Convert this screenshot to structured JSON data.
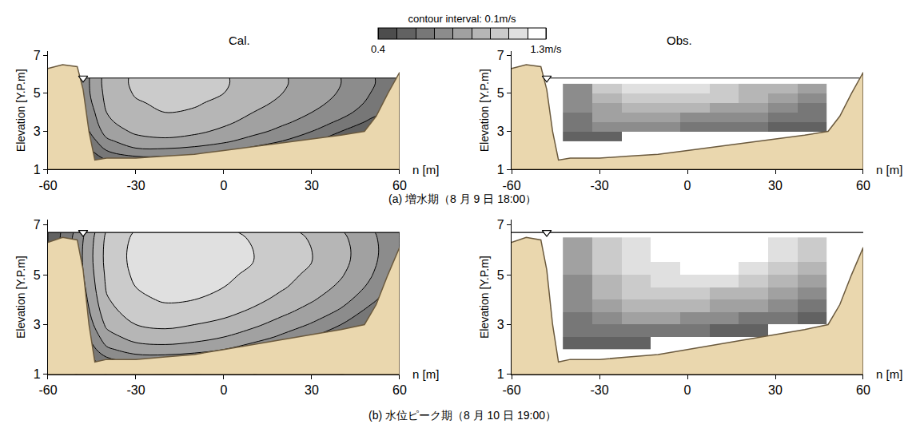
{
  "chart_data": {
    "type": "contour",
    "colorbar": {
      "title": "contour interval: 0.1m/s",
      "range": [
        0.4,
        1.3
      ],
      "interval": 0.1,
      "ticks": [
        0.4,
        {
          "value": 1.3,
          "label": "1.3m/s"
        }
      ],
      "colors": [
        "#4d4d4d",
        "#626262",
        "#777777",
        "#8c8c8c",
        "#a1a1a1",
        "#b6b6b6",
        "#cbcbcb",
        "#e0e0e0",
        "#ffffff"
      ]
    },
    "xlabel": "n [m]",
    "ylabel": "Elevation [Y.P.m]",
    "xlim": [
      -60,
      60
    ],
    "xticks": [
      -60,
      -30,
      0,
      30,
      60
    ],
    "ylim": [
      1,
      7.2
    ],
    "yticks": [
      1,
      3,
      5,
      7
    ],
    "grid": false,
    "bed": {
      "n": [
        -60,
        -55,
        -50,
        -48,
        -46,
        -44,
        -40,
        -30,
        -20,
        -10,
        0,
        10,
        20,
        30,
        40,
        48,
        52,
        56,
        60
      ],
      "elevation": [
        6.3,
        6.5,
        6.4,
        5.2,
        3.0,
        1.5,
        1.6,
        1.6,
        1.7,
        1.8,
        2.0,
        2.2,
        2.4,
        2.6,
        2.8,
        3.0,
        3.8,
        5.0,
        6.1
      ]
    },
    "columns": [
      "Cal.",
      "Obs."
    ],
    "rows": [
      {
        "caption": "(a) 増水期（8 月 9 日 18:00）",
        "water_level": 5.8,
        "panels": [
          {
            "type": "contour",
            "x": [
              -60,
              -50,
              -40,
              -30,
              -20,
              -10,
              0,
              10,
              20,
              30,
              40,
              50,
              60
            ],
            "y": [
              1.0,
              1.5,
              2.0,
              2.5,
              3.0,
              3.5,
              4.0,
              4.5,
              5.0,
              5.5,
              5.8
            ],
            "z": [
              [
                0.4,
                0.4,
                0.5,
                0.55,
                0.55,
                0.55,
                0.5,
                0.5,
                0.45,
                0.4,
                0.4,
                0.4,
                0.4
              ],
              [
                0.4,
                0.45,
                0.6,
                0.65,
                0.65,
                0.65,
                0.6,
                0.55,
                0.5,
                0.45,
                0.4,
                0.4,
                0.4
              ],
              [
                0.4,
                0.5,
                0.7,
                0.78,
                0.78,
                0.76,
                0.72,
                0.66,
                0.6,
                0.52,
                0.45,
                0.4,
                0.4
              ],
              [
                0.45,
                0.55,
                0.78,
                0.86,
                0.88,
                0.86,
                0.82,
                0.76,
                0.7,
                0.62,
                0.52,
                0.45,
                0.4
              ],
              [
                0.5,
                0.6,
                0.84,
                0.92,
                0.94,
                0.92,
                0.88,
                0.83,
                0.77,
                0.7,
                0.6,
                0.5,
                0.45
              ],
              [
                0.5,
                0.62,
                0.88,
                0.96,
                0.98,
                0.96,
                0.92,
                0.87,
                0.82,
                0.76,
                0.68,
                0.58,
                0.5
              ],
              [
                0.5,
                0.65,
                0.9,
                0.98,
                1.0,
                0.99,
                0.95,
                0.9,
                0.86,
                0.8,
                0.74,
                0.64,
                0.55
              ],
              [
                0.5,
                0.68,
                0.92,
                0.99,
                1.02,
                1.01,
                0.98,
                0.93,
                0.88,
                0.83,
                0.77,
                0.68,
                0.58
              ],
              [
                0.5,
                0.7,
                0.93,
                1.01,
                1.04,
                1.03,
                1.0,
                0.95,
                0.9,
                0.85,
                0.79,
                0.7,
                0.6
              ],
              [
                0.5,
                0.7,
                0.94,
                1.02,
                1.05,
                1.04,
                1.01,
                0.96,
                0.91,
                0.86,
                0.8,
                0.72,
                0.6
              ],
              [
                0.5,
                0.7,
                0.94,
                1.02,
                1.05,
                1.04,
                1.01,
                0.96,
                0.91,
                0.86,
                0.8,
                0.72,
                0.6
              ]
            ]
          },
          {
            "type": "heatmap",
            "x": [
              -37.5,
              -27.5,
              -17.5,
              -7.5,
              2.5,
              12.5,
              22.5,
              32.5,
              42.5
            ],
            "y": [
              2.75,
              3.25,
              3.75,
              4.25,
              4.75,
              5.25
            ],
            "z": [
              [
                0.55,
                0.55,
                null,
                null,
                null,
                null,
                null,
                null,
                null
              ],
              [
                0.6,
                0.7,
                0.72,
                0.7,
                0.68,
                0.65,
                0.6,
                0.55,
                0.5
              ],
              [
                0.65,
                0.8,
                0.85,
                0.82,
                0.78,
                0.74,
                0.7,
                0.65,
                0.6
              ],
              [
                0.7,
                0.88,
                0.95,
                0.95,
                0.92,
                0.88,
                0.82,
                0.75,
                0.68
              ],
              [
                0.75,
                0.95,
                1.05,
                1.08,
                1.05,
                1.0,
                0.92,
                0.85,
                0.75
              ],
              [
                0.75,
                1.0,
                1.1,
                1.12,
                1.1,
                1.05,
                0.98,
                0.9,
                0.8
              ]
            ]
          }
        ]
      },
      {
        "caption": "(b) 水位ピーク期（8 月 10 日 19:00）",
        "water_level": 6.7,
        "panels": [
          {
            "type": "contour",
            "x": [
              -60,
              -50,
              -40,
              -30,
              -20,
              -10,
              0,
              10,
              20,
              30,
              40,
              50,
              60
            ],
            "y": [
              1.0,
              1.5,
              2.0,
              2.5,
              3.0,
              3.5,
              4.0,
              4.5,
              5.0,
              5.5,
              6.0,
              6.5,
              6.7
            ],
            "z": [
              [
                0.4,
                0.4,
                0.5,
                0.6,
                0.6,
                0.6,
                0.55,
                0.5,
                0.45,
                0.4,
                0.4,
                0.4,
                0.4
              ],
              [
                0.4,
                0.5,
                0.65,
                0.72,
                0.72,
                0.7,
                0.66,
                0.6,
                0.55,
                0.5,
                0.45,
                0.4,
                0.4
              ],
              [
                0.4,
                0.55,
                0.78,
                0.85,
                0.86,
                0.84,
                0.8,
                0.74,
                0.68,
                0.6,
                0.52,
                0.45,
                0.4
              ],
              [
                0.45,
                0.6,
                0.86,
                0.94,
                0.96,
                0.94,
                0.9,
                0.85,
                0.78,
                0.7,
                0.6,
                0.5,
                0.45
              ],
              [
                0.5,
                0.65,
                0.92,
                1.0,
                1.02,
                1.0,
                0.97,
                0.92,
                0.86,
                0.79,
                0.7,
                0.58,
                0.5
              ],
              [
                0.5,
                0.68,
                0.96,
                1.05,
                1.07,
                1.06,
                1.03,
                0.98,
                0.92,
                0.86,
                0.78,
                0.66,
                0.55
              ],
              [
                0.5,
                0.7,
                0.99,
                1.08,
                1.11,
                1.1,
                1.07,
                1.03,
                0.97,
                0.91,
                0.84,
                0.73,
                0.6
              ],
              [
                0.5,
                0.72,
                1.01,
                1.1,
                1.13,
                1.13,
                1.1,
                1.06,
                1.01,
                0.95,
                0.88,
                0.78,
                0.64
              ],
              [
                0.5,
                0.74,
                1.02,
                1.12,
                1.15,
                1.15,
                1.12,
                1.08,
                1.03,
                0.98,
                0.91,
                0.81,
                0.68
              ],
              [
                0.5,
                0.75,
                1.03,
                1.13,
                1.16,
                1.16,
                1.14,
                1.1,
                1.05,
                1.0,
                0.93,
                0.83,
                0.7
              ],
              [
                0.5,
                0.75,
                1.03,
                1.13,
                1.16,
                1.16,
                1.14,
                1.1,
                1.05,
                1.0,
                0.93,
                0.84,
                0.7
              ],
              [
                0.5,
                0.74,
                1.02,
                1.12,
                1.15,
                1.15,
                1.13,
                1.09,
                1.04,
                0.99,
                0.92,
                0.83,
                0.7
              ],
              [
                0.5,
                0.73,
                1.01,
                1.11,
                1.14,
                1.14,
                1.12,
                1.08,
                1.03,
                0.98,
                0.91,
                0.82,
                0.7
              ]
            ]
          },
          {
            "type": "heatmap",
            "x": [
              -37.5,
              -27.5,
              -17.5,
              -7.5,
              2.5,
              12.5,
              22.5,
              32.5,
              42.5
            ],
            "y": [
              2.25,
              2.75,
              3.25,
              3.75,
              4.25,
              4.75,
              5.25,
              5.75,
              6.25
            ],
            "z": [
              [
                0.5,
                0.55,
                0.55,
                null,
                null,
                null,
                null,
                null,
                null
              ],
              [
                0.6,
                0.65,
                0.68,
                0.66,
                0.62,
                0.58,
                0.55,
                null,
                null
              ],
              [
                0.65,
                0.75,
                0.8,
                0.8,
                0.76,
                0.72,
                0.68,
                0.62,
                0.55
              ],
              [
                0.7,
                0.85,
                0.9,
                0.92,
                0.9,
                0.86,
                0.8,
                0.74,
                0.65
              ],
              [
                0.75,
                0.92,
                1.0,
                1.02,
                1.0,
                0.97,
                0.92,
                0.85,
                0.75
              ],
              [
                0.78,
                0.98,
                1.08,
                1.12,
                1.12,
                1.1,
                1.05,
                0.97,
                0.85
              ],
              [
                0.8,
                1.0,
                1.12,
                1.18,
                1.2,
                1.2,
                1.16,
                1.08,
                0.95
              ],
              [
                0.8,
                1.02,
                1.15,
                1.22,
                1.24,
                1.24,
                1.22,
                1.15,
                1.0
              ],
              [
                0.8,
                1.02,
                1.15,
                1.22,
                1.25,
                1.25,
                1.24,
                1.18,
                1.02
              ]
            ]
          }
        ]
      }
    ]
  }
}
